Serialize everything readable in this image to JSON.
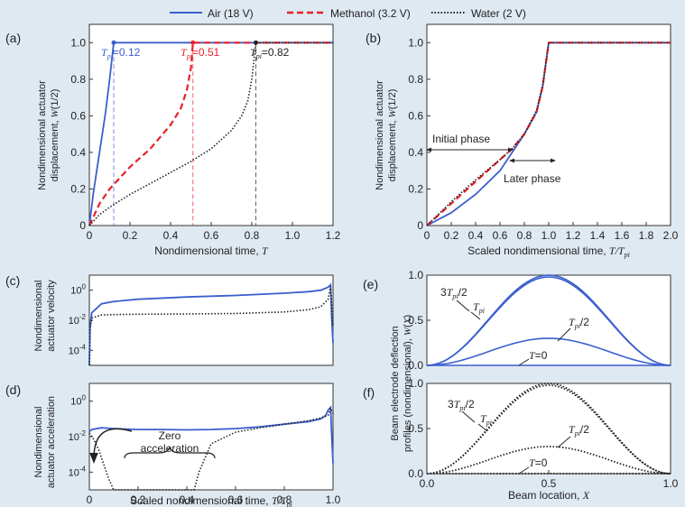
{
  "legend": {
    "items": [
      {
        "label": "Air (18 V)",
        "color": "#3a5fcd",
        "style": "solid"
      },
      {
        "label": "Methanol (3.2 V)",
        "color": "#e8202a",
        "style": "dashed"
      },
      {
        "label": "Water (2 V)",
        "color": "#222222",
        "style": "dotted"
      }
    ]
  },
  "panels": {
    "a": {
      "letter": "(a)",
      "xlabel": "Nondimensional time, T",
      "ylabel1": "Nondimensional actuator",
      "ylabel2": "displacement, W(1/2)",
      "annotations": [
        "Tpi=0.12",
        "Tpi=0.51",
        "Tpi=0.82"
      ]
    },
    "b": {
      "letter": "(b)",
      "xlabel": "Scaled nondimensional time, T/Tpi",
      "ylabel1": "Nondimensional actuator",
      "ylabel2": "displacement, W(1/2)",
      "initial_phase": "Initial phase",
      "later_phase": "Later phase"
    },
    "c": {
      "letter": "(c)",
      "ylabel1": "Nondimensional",
      "ylabel2": "actuator velocity"
    },
    "d": {
      "letter": "(d)",
      "xlabel": "Scaled nondimensional time, T/Tpi",
      "ylabel1": "Nondimensional",
      "ylabel2": "actuator acceleration",
      "zero_acc": [
        "Zero",
        "acceleration"
      ]
    },
    "e": {
      "letter": "(e)",
      "labels": [
        "3Tpi/2",
        "Tpi",
        "Tpi/2",
        "T=0"
      ]
    },
    "f": {
      "letter": "(f)",
      "xlabel": "Beam location, X",
      "labels": [
        "3Tpi/2",
        "Tpi",
        "Tpi/2",
        "T=0"
      ]
    },
    "ef_ylabel1": "Beam electrode deflection",
    "ef_ylabel2": "profiles (nondimensional), W(X)"
  },
  "chart_data": [
    {
      "panel": "a",
      "type": "line",
      "xlim": [
        0,
        1.2
      ],
      "ylim": [
        0,
        1.1
      ],
      "xticks": [
        "0",
        "0.2",
        "0.4",
        "0.6",
        "0.8",
        "1.0",
        "1.2"
      ],
      "yticks": [
        "0",
        "0.2",
        "0.4",
        "0.6",
        "0.8",
        "1.0"
      ],
      "series": [
        {
          "name": "Air (18 V)",
          "pull_in_time": 0.12,
          "x": [
            0,
            0.02,
            0.05,
            0.08,
            0.1,
            0.115,
            0.12,
            1.2
          ],
          "y": [
            0,
            0.18,
            0.4,
            0.62,
            0.8,
            0.95,
            1.0,
            1.0
          ]
        },
        {
          "name": "Methanol (3.2 V)",
          "pull_in_time": 0.51,
          "x": [
            0,
            0.05,
            0.1,
            0.2,
            0.3,
            0.4,
            0.45,
            0.48,
            0.5,
            0.51,
            1.2
          ],
          "y": [
            0,
            0.12,
            0.2,
            0.32,
            0.42,
            0.55,
            0.64,
            0.74,
            0.86,
            1.0,
            1.0
          ]
        },
        {
          "name": "Water (2 V)",
          "pull_in_time": 0.82,
          "x": [
            0,
            0.05,
            0.1,
            0.2,
            0.3,
            0.4,
            0.5,
            0.6,
            0.7,
            0.75,
            0.78,
            0.8,
            0.82,
            1.2
          ],
          "y": [
            0,
            0.06,
            0.1,
            0.17,
            0.23,
            0.29,
            0.35,
            0.42,
            0.52,
            0.6,
            0.68,
            0.8,
            1.0,
            1.0
          ]
        }
      ]
    },
    {
      "panel": "b",
      "type": "line",
      "xlim": [
        0,
        2.0
      ],
      "ylim": [
        0,
        1.1
      ],
      "xticks": [
        "0",
        "0.2",
        "0.4",
        "0.6",
        "0.8",
        "1.0",
        "1.2",
        "1.4",
        "1.6",
        "1.8",
        "2.0"
      ],
      "yticks": [
        "0",
        "0.2",
        "0.4",
        "0.6",
        "0.8",
        "1.0"
      ],
      "series": [
        {
          "name": "Air (18 V)",
          "x": [
            0,
            0.2,
            0.4,
            0.6,
            0.7,
            0.8,
            0.9,
            0.95,
            1.0,
            2.0
          ],
          "y": [
            0,
            0.07,
            0.17,
            0.3,
            0.4,
            0.5,
            0.62,
            0.76,
            1.0,
            1.0
          ]
        },
        {
          "name": "Methanol (3.2 V)",
          "x": [
            0,
            0.2,
            0.4,
            0.6,
            0.7,
            0.8,
            0.9,
            0.95,
            1.0,
            2.0
          ],
          "y": [
            0,
            0.12,
            0.24,
            0.36,
            0.42,
            0.5,
            0.62,
            0.76,
            1.0,
            1.0
          ]
        },
        {
          "name": "Water (2 V)",
          "x": [
            0,
            0.2,
            0.4,
            0.6,
            0.7,
            0.8,
            0.9,
            0.95,
            1.0,
            2.0
          ],
          "y": [
            0,
            0.13,
            0.25,
            0.36,
            0.42,
            0.5,
            0.63,
            0.77,
            1.0,
            1.0
          ]
        }
      ]
    },
    {
      "panel": "c",
      "type": "line",
      "yscale": "log",
      "xlim": [
        0,
        1.0
      ],
      "ylim_exp": [
        -5,
        1
      ],
      "yticks": [
        "10^0",
        "10^-2",
        "10^-4"
      ],
      "series": [
        {
          "name": "Air (18 V)",
          "x": [
            0,
            0.003,
            0.01,
            0.05,
            0.1,
            0.2,
            0.4,
            0.6,
            0.8,
            0.9,
            0.95,
            0.98,
            0.99,
            0.995,
            1.0
          ],
          "logy": [
            -5,
            -2.5,
            -1.5,
            -0.9,
            -0.75,
            -0.6,
            -0.45,
            -0.35,
            -0.2,
            -0.1,
            0,
            0.2,
            0.35,
            -2,
            -3.5
          ]
        },
        {
          "name": "Water (2 V)",
          "x": [
            0,
            0.003,
            0.01,
            0.05,
            0.1,
            0.2,
            0.4,
            0.6,
            0.8,
            0.9,
            0.95,
            0.98,
            0.99,
            1.0
          ],
          "logy": [
            -5,
            -2.5,
            -1.85,
            -1.65,
            -1.62,
            -1.6,
            -1.58,
            -1.55,
            -1.45,
            -1.3,
            -1.1,
            -0.6,
            0.25,
            -2.4
          ]
        }
      ]
    },
    {
      "panel": "d",
      "type": "line",
      "yscale": "log",
      "xlim": [
        0,
        1.0
      ],
      "ylim_exp": [
        -5,
        1
      ],
      "xticks": [
        "0",
        "0.2",
        "0.4",
        "0.6",
        "0.8",
        "1.0"
      ],
      "yticks": [
        "10^0",
        "10^-2",
        "10^-4"
      ],
      "series": [
        {
          "name": "Air (18 V)",
          "x": [
            0,
            0.01,
            0.05,
            0.1,
            0.2,
            0.3,
            0.4,
            0.5,
            0.6,
            0.7,
            0.8,
            0.9,
            0.95,
            0.97,
            0.98,
            0.99,
            0.995,
            1.0
          ],
          "logy": [
            -1.7,
            -1.6,
            -1.5,
            -1.55,
            -1.6,
            -1.6,
            -1.62,
            -1.6,
            -1.55,
            -1.45,
            -1.3,
            -1.15,
            -1.0,
            -0.8,
            -0.5,
            -0.35,
            -2,
            -3.5
          ]
        },
        {
          "name": "Water (2 V)",
          "x": [
            0,
            0.02,
            0.04,
            0.06,
            0.08,
            0.1,
            0.43,
            0.45,
            0.5,
            0.6,
            0.7,
            0.8,
            0.9,
            0.95,
            0.98,
            0.99,
            1.0
          ],
          "logy": [
            -1.8,
            -2.2,
            -2.8,
            -3.6,
            -4.4,
            -5.2,
            -5.2,
            -4,
            -2.4,
            -1.75,
            -1.5,
            -1.3,
            -1.1,
            -0.95,
            -0.8,
            -0.4,
            -0.7
          ]
        }
      ]
    },
    {
      "panel": "e",
      "type": "line",
      "xlim": [
        0,
        1.0
      ],
      "ylim": [
        0,
        1.0
      ],
      "yticks": [
        "0.0",
        "0.5",
        "1.0"
      ],
      "series": [
        {
          "name": "T=0",
          "amplitude": 0.0
        },
        {
          "name": "Tpi/2",
          "amplitude": 0.3
        },
        {
          "name": "Tpi",
          "amplitude": 0.98
        },
        {
          "name": "3Tpi/2",
          "amplitude": 1.0
        }
      ]
    },
    {
      "panel": "f",
      "type": "line",
      "xlim": [
        0,
        1.0
      ],
      "ylim": [
        0,
        1.0
      ],
      "xticks": [
        "0.0",
        "0.5",
        "1.0"
      ],
      "yticks": [
        "0.0",
        "0.5",
        "1.0"
      ],
      "series": [
        {
          "name": "T=0",
          "amplitude": 0.0
        },
        {
          "name": "Tpi/2",
          "amplitude": 0.3
        },
        {
          "name": "Tpi",
          "amplitude": 0.98
        },
        {
          "name": "3Tpi/2",
          "amplitude": 1.0
        }
      ]
    }
  ]
}
